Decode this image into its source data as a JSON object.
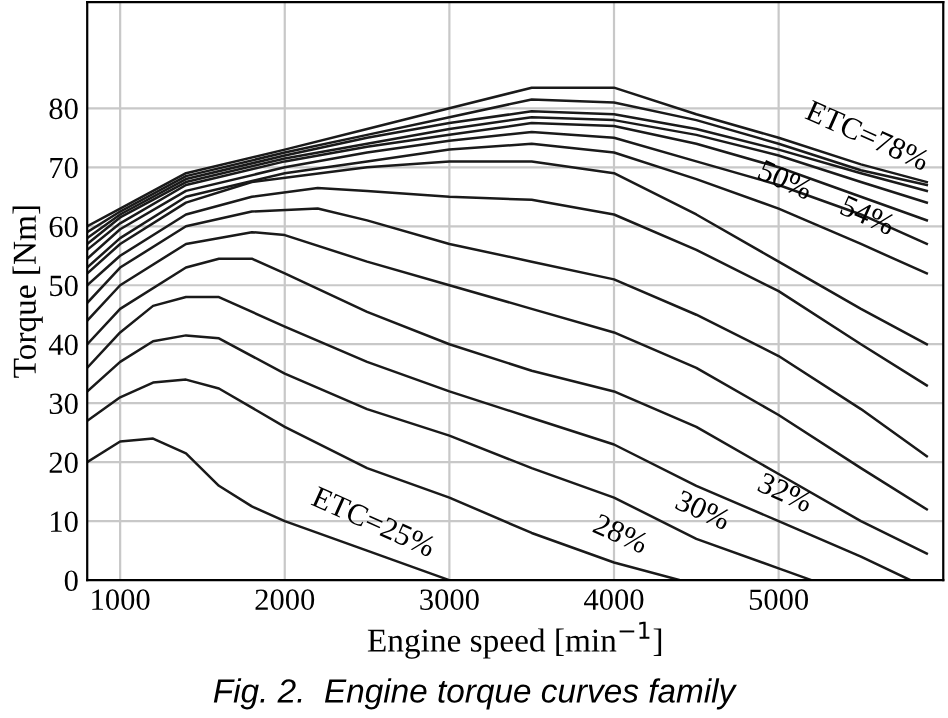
{
  "chart_data": {
    "type": "line",
    "xlabel": "Engine speed [min$^{−1}$]",
    "ylabel": "Torque [Nm]",
    "xlim": [
      800,
      6000
    ],
    "ylim": [
      0,
      98
    ],
    "xticks": [
      1000,
      2000,
      3000,
      4000,
      5000
    ],
    "yticks": [
      0,
      10,
      20,
      30,
      40,
      50,
      60,
      70,
      80
    ],
    "grid": true,
    "marker": "none",
    "line_style": "solid",
    "series": [
      {
        "color": "#1a1a1a",
        "x": [
          800,
          1000,
          1200,
          1400,
          1600,
          1800,
          2000,
          2500,
          3000
        ],
        "values": [
          20,
          23.5,
          24,
          21.5,
          16,
          12.5,
          10,
          5,
          0
        ]
      },
      {
        "color": "#1a1a1a",
        "x": [
          800,
          1000,
          1200,
          1400,
          1600,
          2000,
          2500,
          3000,
          3500,
          4000,
          4400
        ],
        "values": [
          27,
          31,
          33.5,
          34,
          32.5,
          26,
          19,
          14,
          8,
          3,
          0
        ]
      },
      {
        "color": "#1a1a1a",
        "x": [
          800,
          1000,
          1200,
          1400,
          1600,
          2000,
          2500,
          3000,
          3500,
          4000,
          4500,
          5000,
          5200
        ],
        "values": [
          32,
          37,
          40.5,
          41.5,
          41,
          35,
          29,
          24.5,
          19,
          14,
          7,
          2,
          0
        ]
      },
      {
        "color": "#1a1a1a",
        "x": [
          800,
          1000,
          1200,
          1400,
          1600,
          2000,
          2500,
          3000,
          3500,
          4000,
          4500,
          5000,
          5500,
          5800
        ],
        "values": [
          36,
          42,
          46.5,
          48,
          48,
          43,
          37,
          32,
          27.5,
          23,
          16,
          10,
          4,
          0
        ]
      },
      {
        "color": "#1a1a1a",
        "x": [
          800,
          1000,
          1400,
          1600,
          1800,
          2000,
          2500,
          3000,
          3500,
          4000,
          4500,
          5000,
          5500,
          5900
        ],
        "values": [
          40,
          46,
          53,
          54.5,
          54.5,
          52,
          45.5,
          40,
          35.5,
          32,
          26,
          18,
          10,
          4.5
        ]
      },
      {
        "color": "#1a1a1a",
        "x": [
          800,
          1000,
          1400,
          1800,
          2000,
          2500,
          3000,
          3500,
          4000,
          4500,
          5000,
          5500,
          5900
        ],
        "values": [
          44,
          50,
          57,
          59,
          58.5,
          54,
          50,
          46,
          42,
          36,
          28,
          19,
          12
        ]
      },
      {
        "color": "#1a1a1a",
        "x": [
          800,
          1000,
          1400,
          1800,
          2200,
          2500,
          3000,
          3500,
          4000,
          4500,
          5000,
          5500,
          5900
        ],
        "values": [
          47,
          53,
          60,
          62.5,
          63,
          61,
          57,
          54,
          51,
          45,
          38,
          29,
          21
        ]
      },
      {
        "color": "#1a1a1a",
        "x": [
          800,
          1000,
          1400,
          1800,
          2200,
          2500,
          3000,
          3500,
          4000,
          4500,
          5000,
          5500,
          5900
        ],
        "values": [
          50,
          55,
          62,
          65,
          66.5,
          66,
          65,
          64.5,
          62,
          56,
          49,
          40,
          33
        ]
      },
      {
        "color": "#1a1a1a",
        "x": [
          800,
          1000,
          1400,
          1800,
          2500,
          3000,
          3500,
          4000,
          4500,
          5000,
          5500,
          5900
        ],
        "values": [
          52,
          57,
          64,
          67.5,
          70,
          71,
          71,
          69,
          62,
          54,
          46,
          40
        ]
      },
      {
        "color": "#1a1a1a",
        "x": [
          800,
          1000,
          1400,
          2000,
          2500,
          3000,
          3500,
          4000,
          4500,
          5000,
          5500,
          5900
        ],
        "values": [
          53,
          58,
          65,
          69,
          71,
          73,
          74,
          72.5,
          68,
          63,
          57,
          52
        ]
      },
      {
        "color": "#1a1a1a",
        "x": [
          800,
          1000,
          1400,
          2000,
          2500,
          3000,
          3500,
          4000,
          4500,
          5000,
          5500,
          5900
        ],
        "values": [
          54.5,
          59.5,
          66,
          70,
          72.5,
          74.5,
          76,
          75,
          71,
          67,
          62,
          57
        ]
      },
      {
        "color": "#1a1a1a",
        "x": [
          800,
          1000,
          1400,
          2000,
          2500,
          3000,
          3500,
          4000,
          4500,
          5000,
          5500,
          5900
        ],
        "values": [
          56,
          60.5,
          67,
          71,
          73.5,
          75.5,
          77.5,
          77,
          74,
          70,
          65,
          61
        ]
      },
      {
        "color": "#1a1a1a",
        "x": [
          800,
          1000,
          1400,
          2000,
          2500,
          3000,
          3500,
          4000,
          4500,
          5000,
          5500,
          5900
        ],
        "values": [
          57,
          61.5,
          67.5,
          71.5,
          74,
          76.5,
          78.5,
          78,
          75.5,
          72,
          67.5,
          64
        ]
      },
      {
        "color": "#1a1a1a",
        "x": [
          800,
          1000,
          1400,
          2000,
          2500,
          3000,
          3500,
          4000,
          4500,
          5000,
          5500,
          5900
        ],
        "values": [
          58,
          62,
          68,
          72,
          75,
          77.5,
          79.5,
          79,
          76.5,
          73,
          69,
          66
        ]
      },
      {
        "color": "#1a1a1a",
        "x": [
          800,
          1000,
          1400,
          2000,
          2500,
          3000,
          3500,
          4000,
          4500,
          5000,
          5500,
          5900
        ],
        "values": [
          59,
          62.5,
          68.5,
          72.5,
          75.5,
          78.5,
          81.5,
          81,
          78,
          74,
          69.5,
          67
        ]
      },
      {
        "color": "#1a1a1a",
        "x": [
          800,
          1000,
          1400,
          2000,
          2500,
          3000,
          3500,
          4000,
          4500,
          5000,
          5500,
          5900
        ],
        "values": [
          60,
          63,
          69,
          73,
          76.5,
          80,
          83.5,
          83.5,
          79,
          75,
          70.5,
          67.5
        ]
      }
    ],
    "annotations": [
      {
        "text": "ETC=78%",
        "x": 5500,
        "y": 70.5
      },
      {
        "text": "50%",
        "x": 5000,
        "y": 63
      },
      {
        "text": "54%",
        "x": 5500,
        "y": 57
      },
      {
        "text": "ETC=25%",
        "x": 2500,
        "y": 5
      },
      {
        "text": "28%",
        "x": 4000,
        "y": 3
      },
      {
        "text": "30%",
        "x": 4500,
        "y": 7
      },
      {
        "text": "32%",
        "x": 5000,
        "y": 10
      },
      "Fig. 2.  Engine torque curves family"
    ]
  }
}
